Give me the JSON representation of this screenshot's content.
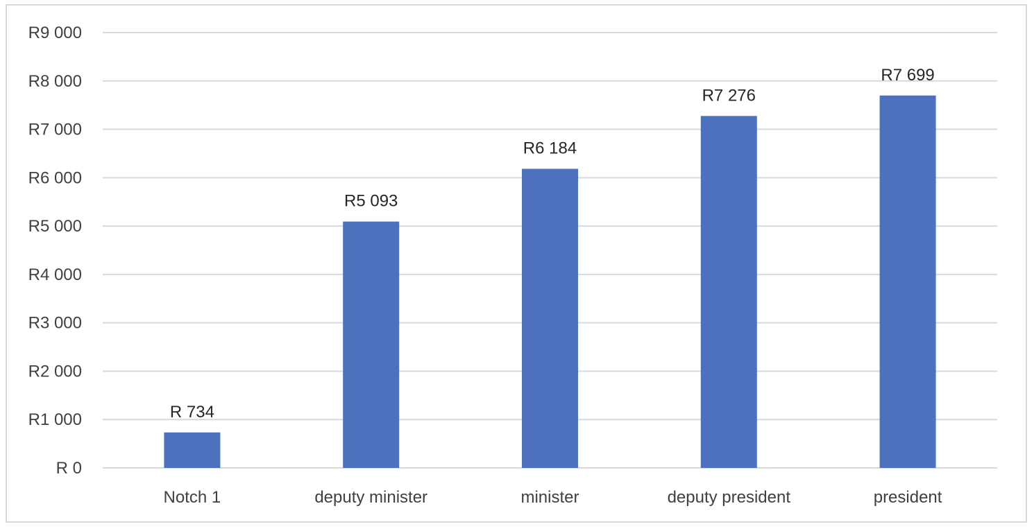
{
  "chart_data": {
    "type": "bar",
    "categories": [
      "Notch 1",
      "deputy minister",
      "minister",
      "deputy president",
      "president"
    ],
    "values": [
      734,
      5093,
      6184,
      7276,
      7699
    ],
    "value_labels": [
      "R 734",
      "R5 093",
      "R6 184",
      "R7 276",
      "R7 699"
    ],
    "title": "",
    "xlabel": "",
    "ylabel": "",
    "ylim": [
      0,
      9000
    ],
    "y_ticks": [
      0,
      1000,
      2000,
      3000,
      4000,
      5000,
      6000,
      7000,
      8000,
      9000
    ],
    "y_tick_labels": [
      "R 0",
      "R1 000",
      "R2 000",
      "R3 000",
      "R4 000",
      "R5 000",
      "R6 000",
      "R7 000",
      "R8 000",
      "R9 000"
    ],
    "grid": true,
    "legend": "none",
    "bar_color": "#4e71be",
    "grid_color": "#d9d9d9"
  }
}
